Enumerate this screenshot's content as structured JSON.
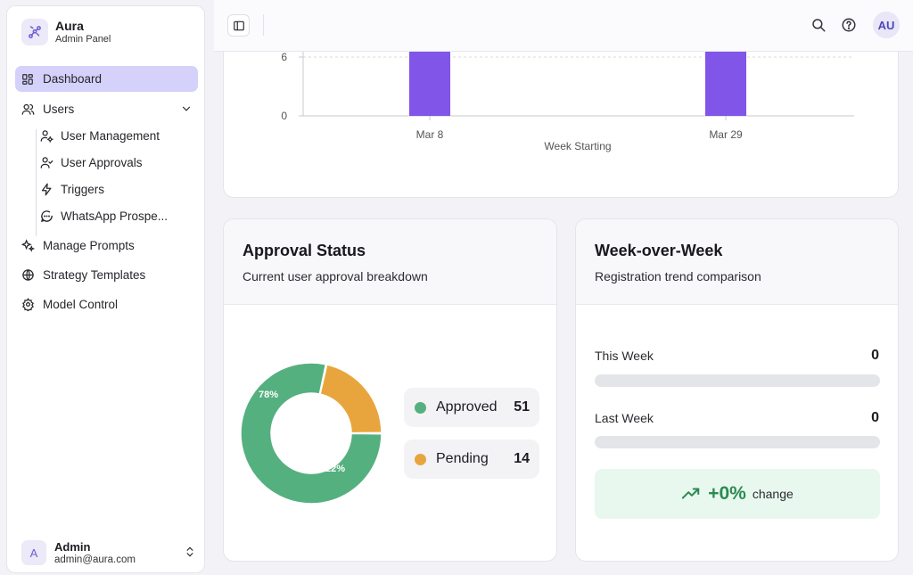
{
  "sidebar": {
    "brand": {
      "name": "Aura",
      "subtitle": "Admin Panel"
    },
    "nav": [
      {
        "label": "Dashboard",
        "icon": "grid-icon",
        "active": true
      },
      {
        "label": "Users",
        "icon": "users-icon",
        "expanded": true
      }
    ],
    "users_sub": [
      {
        "label": "User Management",
        "icon": "user-cog-icon"
      },
      {
        "label": "User Approvals",
        "icon": "user-check-icon"
      },
      {
        "label": "Triggers",
        "icon": "zap-icon"
      },
      {
        "label": "WhatsApp Prospe...",
        "icon": "message-circle-icon"
      }
    ],
    "nav2": [
      {
        "label": "Manage Prompts",
        "icon": "sparkles-icon"
      },
      {
        "label": "Strategy Templates",
        "icon": "globe-icon"
      },
      {
        "label": "Model Control",
        "icon": "settings-icon"
      }
    ],
    "user": {
      "initial": "A",
      "name": "Admin",
      "email": "admin@aura.com"
    }
  },
  "topbar": {
    "avatar_initials": "AU"
  },
  "chart_data": {
    "type": "bar",
    "categories": [
      "Mar 8",
      "Mar 29"
    ],
    "values": [
      6,
      6
    ],
    "xlabel": "Week Starting",
    "ylabel": "",
    "y_ticks": [
      "0",
      "6"
    ],
    "ylim": [
      0,
      6
    ],
    "bar_color": "#8055e8",
    "grid": true
  },
  "approval": {
    "title": "Approval Status",
    "subtitle": "Current user approval breakdown",
    "items": [
      {
        "label": "Approved",
        "value": "51",
        "percent_label": "78%",
        "color": "#55b07f"
      },
      {
        "label": "Pending",
        "value": "14",
        "percent_label": "22%",
        "color": "#e9a53d"
      }
    ]
  },
  "wow": {
    "title": "Week-over-Week",
    "subtitle": "Registration trend comparison",
    "this_week_label": "This Week",
    "this_week_value": "0",
    "last_week_label": "Last Week",
    "last_week_value": "0",
    "change_value": "+0%",
    "change_word": "change",
    "accent": "#2b8a50"
  }
}
